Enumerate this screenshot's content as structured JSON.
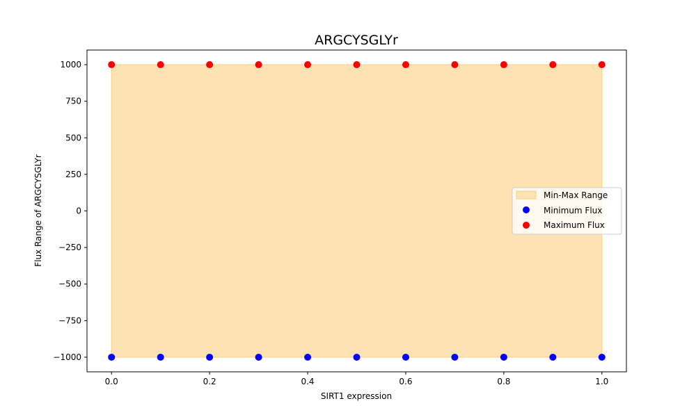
{
  "chart_data": {
    "type": "scatter",
    "title": "ARGCYSGLYr",
    "xlabel": "SIRT1 expression",
    "ylabel": "Flux Range of ARGCYSGLYr",
    "xlim": [
      -0.05,
      1.05
    ],
    "ylim": [
      -1100,
      1100
    ],
    "x_ticks": [
      0.0,
      0.2,
      0.4,
      0.6,
      0.8,
      1.0
    ],
    "x_tick_labels": [
      "0.0",
      "0.2",
      "0.4",
      "0.6",
      "0.8",
      "1.0"
    ],
    "y_ticks": [
      -1000,
      -750,
      -500,
      -250,
      0,
      250,
      500,
      750,
      1000
    ],
    "y_tick_labels": [
      "−1000",
      "−750",
      "−500",
      "−250",
      "0",
      "250",
      "500",
      "750",
      "1000"
    ],
    "x": [
      0.0,
      0.1,
      0.2,
      0.3,
      0.4,
      0.5,
      0.6,
      0.7,
      0.8,
      0.9,
      1.0
    ],
    "fill": {
      "name": "Min-Max Range",
      "color": "#fde2b3",
      "edge": "#f9cf86"
    },
    "series": [
      {
        "name": "Minimum Flux",
        "color": "#0000ff",
        "values": [
          -1000,
          -1000,
          -1000,
          -1000,
          -1000,
          -1000,
          -1000,
          -1000,
          -1000,
          -1000,
          -1000
        ]
      },
      {
        "name": "Maximum Flux",
        "color": "#ff0000",
        "values": [
          1000,
          1000,
          1000,
          1000,
          1000,
          1000,
          1000,
          1000,
          1000,
          1000,
          1000
        ]
      }
    ],
    "legend_position": "center-right",
    "grid": false
  }
}
